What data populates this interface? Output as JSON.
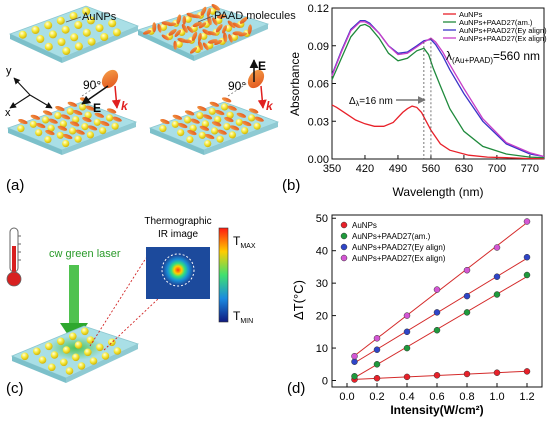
{
  "panels": {
    "a": {
      "tag": "(a)",
      "label_aunps": "AuNPs",
      "label_paad": "PAAD molecules",
      "axis_y": "y",
      "axis_x": "x",
      "angle_left": "90°",
      "angle_right": "90°",
      "field_left": "E",
      "field_right": "E",
      "k_left": "k",
      "k_right": "k"
    },
    "b": {
      "tag": "(b)",
      "lambda_main": "λ",
      "lambda_sub": "(Au+PAAD)",
      "lambda_value": "=560 nm",
      "delta_main": "Δ",
      "delta_sub": "λ",
      "delta_value": "=16 nm"
    },
    "c": {
      "tag": "(c)",
      "laser_label": "cw green laser",
      "thermo_line1": "Thermographic",
      "thermo_line2": "IR image",
      "tmax_main": "T",
      "tmax_sub": "MAX",
      "tmin_main": "T",
      "tmin_sub": "MIN"
    },
    "d": {
      "tag": "(d)"
    }
  },
  "chart_data": [
    {
      "type": "line",
      "panel": "b",
      "xlabel": "Wavelength (nm)",
      "ylabel": "Absorbance",
      "xlim": [
        350,
        800
      ],
      "ylim": [
        0,
        0.12
      ],
      "xticks": [
        350,
        420,
        490,
        560,
        630,
        700,
        770
      ],
      "yticks": [
        0,
        0.03,
        0.06,
        0.09,
        0.12
      ],
      "ytick_labels": [
        "0.00",
        "0.03",
        "0.06",
        "0.09",
        "0.12"
      ],
      "grid": false,
      "legend_position": "top-right",
      "colors": [
        "#e8212a",
        "#1f8a3c",
        "#3b35c8",
        "#c83ec8"
      ],
      "series": [
        {
          "name": "AuNPs",
          "x": [
            350,
            360,
            380,
            400,
            420,
            440,
            460,
            480,
            500,
            510,
            520,
            530,
            540,
            550,
            560,
            580,
            600,
            640,
            680,
            720,
            760,
            800
          ],
          "y": [
            0.043,
            0.041,
            0.036,
            0.031,
            0.028,
            0.026,
            0.026,
            0.029,
            0.037,
            0.04,
            0.042,
            0.041,
            0.037,
            0.03,
            0.023,
            0.012,
            0.007,
            0.003,
            0.0015,
            0.001,
            0.0005,
            0.0003
          ]
        },
        {
          "name": "AuNPs+PAAD27(am.)",
          "x": [
            350,
            370,
            390,
            410,
            420,
            430,
            450,
            470,
            490,
            510,
            530,
            545,
            555,
            565,
            580,
            600,
            630,
            670,
            720,
            770,
            800
          ],
          "y": [
            0.063,
            0.08,
            0.097,
            0.106,
            0.107,
            0.105,
            0.096,
            0.084,
            0.078,
            0.08,
            0.086,
            0.088,
            0.083,
            0.072,
            0.058,
            0.04,
            0.022,
            0.01,
            0.004,
            0.0015,
            0.001
          ]
        },
        {
          "name": "AuNPs+PAAD27(Ey align)",
          "x": [
            350,
            370,
            390,
            410,
            420,
            430,
            450,
            470,
            490,
            510,
            530,
            545,
            560,
            570,
            585,
            600,
            630,
            670,
            720,
            770,
            800
          ],
          "y": [
            0.067,
            0.086,
            0.103,
            0.11,
            0.11,
            0.108,
            0.1,
            0.09,
            0.084,
            0.085,
            0.09,
            0.094,
            0.095,
            0.091,
            0.082,
            0.071,
            0.052,
            0.03,
            0.012,
            0.004,
            0.002
          ]
        },
        {
          "name": "AuNPs+PAAD27(Ex align)",
          "x": [
            350,
            370,
            390,
            410,
            420,
            430,
            450,
            470,
            490,
            510,
            530,
            545,
            560,
            570,
            585,
            600,
            630,
            670,
            720,
            770,
            800
          ],
          "y": [
            0.066,
            0.085,
            0.102,
            0.109,
            0.109,
            0.107,
            0.1,
            0.09,
            0.083,
            0.084,
            0.089,
            0.093,
            0.096,
            0.093,
            0.085,
            0.075,
            0.056,
            0.032,
            0.013,
            0.005,
            0.002
          ]
        }
      ]
    },
    {
      "type": "scatter",
      "panel": "d",
      "xlabel": "Intensity(W/cm²)",
      "ylabel": "ΔT(°C)",
      "xlim": [
        -0.1,
        1.3
      ],
      "ylim": [
        -2,
        51
      ],
      "xticks": [
        0.0,
        0.2,
        0.4,
        0.6,
        0.8,
        1.0,
        1.2
      ],
      "xtick_labels": [
        "0.0",
        "0.2",
        "0.4",
        "0.6",
        "0.8",
        "1.0",
        "1.2"
      ],
      "yticks": [
        0,
        10,
        20,
        30,
        40,
        50
      ],
      "grid": false,
      "legend_position": "top-left",
      "fit_lines": true,
      "fit_color": "#d42a2a",
      "colors": [
        "#e8212a",
        "#1f9a3c",
        "#2f45c8",
        "#d456d4"
      ],
      "x": [
        0.05,
        0.2,
        0.4,
        0.6,
        0.8,
        1.0,
        1.2
      ],
      "series": [
        {
          "name": "AuNPs",
          "values": [
            0.3,
            0.7,
            1.1,
            1.6,
            2.0,
            2.4,
            2.8
          ]
        },
        {
          "name": "AuNPs+PAAD27(am.)",
          "values": [
            1.3,
            5.0,
            10.0,
            15.5,
            21.0,
            26.5,
            32.5
          ]
        },
        {
          "name": "AuNPs+PAAD27(Ey align)",
          "values": [
            5.8,
            9.5,
            15.0,
            21.0,
            26.0,
            32.0,
            38.0
          ]
        },
        {
          "name": "AuNPs+PAAD27(Ex align)",
          "values": [
            7.5,
            13.0,
            20.0,
            28.0,
            34.0,
            41.0,
            49.0
          ]
        }
      ]
    }
  ]
}
